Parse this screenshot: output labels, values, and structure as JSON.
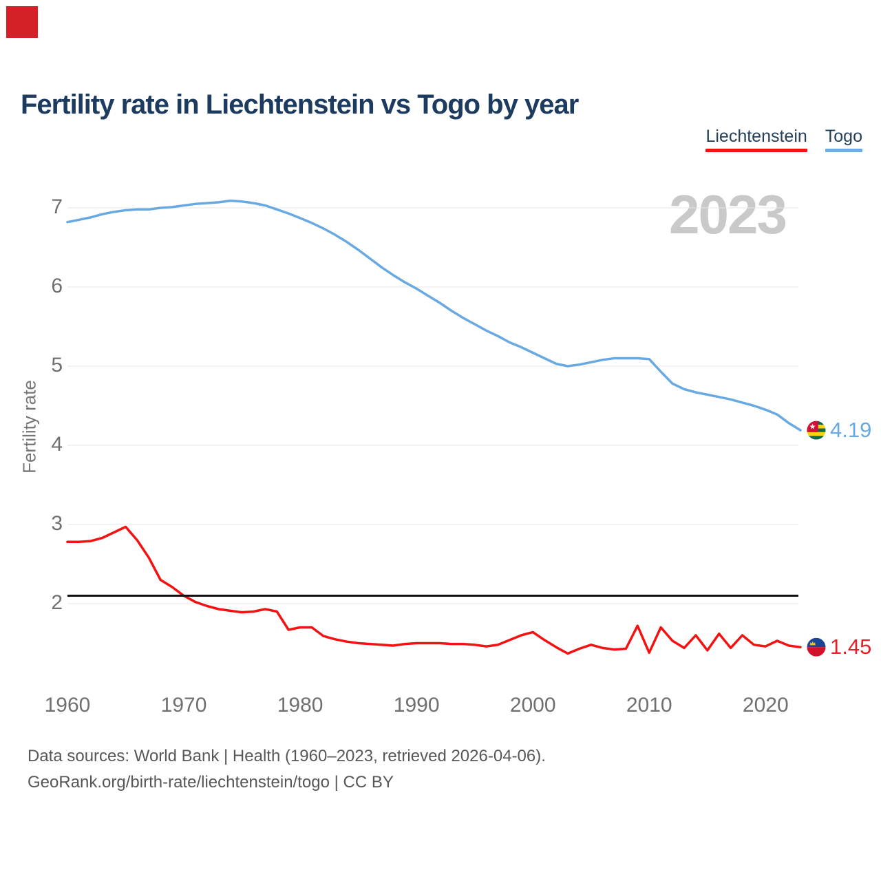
{
  "corner_marker": {
    "color": "#d62027"
  },
  "title": "Fertility rate in Liechtenstein vs Togo by year",
  "legend": {
    "items": [
      {
        "label": "Liechtenstein",
        "color": "#f41111"
      },
      {
        "label": "Togo",
        "color": "#6cace6"
      }
    ]
  },
  "watermark": "2023",
  "end_labels": {
    "togo": {
      "value": "4.19",
      "flag": "togo-flag"
    },
    "liechtenstein": {
      "value": "1.45",
      "flag": "liechtenstein-flag"
    }
  },
  "footer": {
    "line1": "Data sources: World Bank | Health (1960–2023, retrieved 2026-04-06).",
    "line2": "GeoRank.org/birth-rate/liechtenstein/togo | CC BY"
  },
  "chart_data": {
    "type": "line",
    "title": "Fertility rate in Liechtenstein vs Togo by year",
    "xlabel": "",
    "ylabel": "Fertility rate",
    "watermark": "2023",
    "grid": "horizontal",
    "legend_position": "top-right",
    "xlim": [
      1960,
      2023
    ],
    "ylim": [
      1.2,
      7.35
    ],
    "x_ticks": [
      1960,
      1970,
      1980,
      1990,
      2000,
      2010,
      2020
    ],
    "y_ticks": [
      2,
      3,
      4,
      5,
      6,
      7
    ],
    "reference_line": {
      "value": 2.1,
      "color": "#111111"
    },
    "x": [
      1960,
      1961,
      1962,
      1963,
      1964,
      1965,
      1966,
      1967,
      1968,
      1969,
      1970,
      1971,
      1972,
      1973,
      1974,
      1975,
      1976,
      1977,
      1978,
      1979,
      1980,
      1981,
      1982,
      1983,
      1984,
      1985,
      1986,
      1987,
      1988,
      1989,
      1990,
      1991,
      1992,
      1993,
      1994,
      1995,
      1996,
      1997,
      1998,
      1999,
      2000,
      2001,
      2002,
      2003,
      2004,
      2005,
      2006,
      2007,
      2008,
      2009,
      2010,
      2011,
      2012,
      2013,
      2014,
      2015,
      2016,
      2017,
      2018,
      2019,
      2020,
      2021,
      2022,
      2023
    ],
    "series": [
      {
        "name": "Liechtenstein",
        "color": "#f41111",
        "end_value": 1.45,
        "values": [
          2.78,
          2.78,
          2.79,
          2.83,
          2.9,
          2.97,
          2.8,
          2.58,
          2.3,
          2.21,
          2.1,
          2.02,
          1.97,
          1.93,
          1.91,
          1.89,
          1.9,
          1.93,
          1.9,
          1.67,
          1.7,
          1.7,
          1.59,
          1.55,
          1.52,
          1.5,
          1.49,
          1.48,
          1.47,
          1.49,
          1.5,
          1.5,
          1.5,
          1.49,
          1.49,
          1.48,
          1.46,
          1.48,
          1.54,
          1.6,
          1.64,
          1.54,
          1.45,
          1.37,
          1.43,
          1.48,
          1.44,
          1.42,
          1.43,
          1.72,
          1.38,
          1.7,
          1.53,
          1.44,
          1.6,
          1.41,
          1.62,
          1.44,
          1.6,
          1.48,
          1.46,
          1.53,
          1.47,
          1.45
        ]
      },
      {
        "name": "Togo",
        "color": "#69a9e2",
        "end_value": 4.19,
        "values": [
          6.82,
          6.85,
          6.88,
          6.92,
          6.95,
          6.97,
          6.98,
          6.98,
          7.0,
          7.01,
          7.03,
          7.05,
          7.06,
          7.07,
          7.09,
          7.08,
          7.06,
          7.03,
          6.98,
          6.93,
          6.87,
          6.81,
          6.74,
          6.66,
          6.57,
          6.47,
          6.36,
          6.25,
          6.15,
          6.06,
          5.98,
          5.89,
          5.8,
          5.7,
          5.61,
          5.53,
          5.45,
          5.38,
          5.3,
          5.24,
          5.17,
          5.1,
          5.03,
          5.0,
          5.02,
          5.05,
          5.08,
          5.1,
          5.1,
          5.1,
          5.09,
          4.93,
          4.78,
          4.71,
          4.67,
          4.64,
          4.61,
          4.58,
          4.54,
          4.5,
          4.45,
          4.39,
          4.28,
          4.19
        ]
      }
    ]
  }
}
